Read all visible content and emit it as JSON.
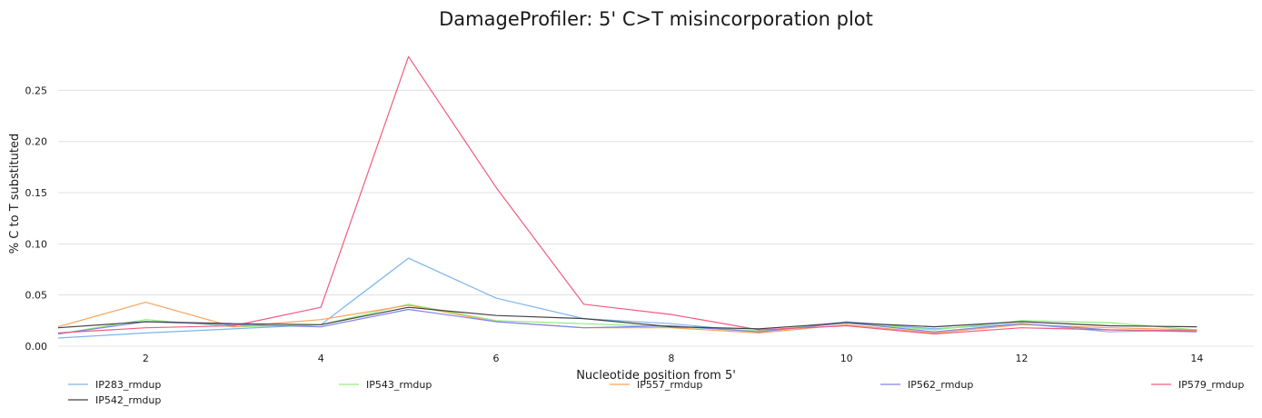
{
  "chart_data": {
    "type": "line",
    "title": "DamageProfiler: 5' C>T misincorporation plot",
    "xlabel": "Nucleotide position from 5'",
    "ylabel": "% C to T substituted",
    "x": [
      1,
      2,
      3,
      4,
      5,
      6,
      7,
      8,
      9,
      10,
      11,
      12,
      13,
      14
    ],
    "xlim": [
      1,
      14.65
    ],
    "ylim": [
      0,
      0.285
    ],
    "xticks": [
      2,
      4,
      6,
      8,
      10,
      12,
      14
    ],
    "xtick_labels": [
      "2",
      "4",
      "6",
      "8",
      "10",
      "12",
      "14"
    ],
    "yticks": [
      0,
      0.05,
      0.1,
      0.15,
      0.2,
      0.25
    ],
    "ytick_labels": [
      "0.00",
      "0.05",
      "0.10",
      "0.15",
      "0.20",
      "0.25"
    ],
    "grid": true,
    "legend_position": "bottom",
    "series": [
      {
        "name": "IP283_rmdup",
        "color": "#7cb5ec",
        "values": [
          0.008,
          0.013,
          0.017,
          0.021,
          0.086,
          0.047,
          0.027,
          0.022,
          0.014,
          0.024,
          0.017,
          0.022,
          0.014,
          0.016
        ]
      },
      {
        "name": "IP543_rmdup",
        "color": "#90ed7d",
        "values": [
          0.012,
          0.026,
          0.019,
          0.021,
          0.041,
          0.025,
          0.022,
          0.019,
          0.015,
          0.023,
          0.016,
          0.025,
          0.023,
          0.016
        ]
      },
      {
        "name": "IP557_rmdup",
        "color": "#f7a35c",
        "values": [
          0.019,
          0.043,
          0.019,
          0.026,
          0.04,
          0.024,
          0.018,
          0.018,
          0.013,
          0.021,
          0.013,
          0.021,
          0.018,
          0.016
        ]
      },
      {
        "name": "IP562_rmdup",
        "color": "#8085e9",
        "values": [
          0.012,
          0.024,
          0.021,
          0.019,
          0.036,
          0.024,
          0.018,
          0.02,
          0.014,
          0.023,
          0.014,
          0.022,
          0.016,
          0.014
        ]
      },
      {
        "name": "IP579_rmdup",
        "color": "#f15c80",
        "values": [
          0.013,
          0.018,
          0.02,
          0.038,
          0.283,
          0.155,
          0.041,
          0.031,
          0.016,
          0.02,
          0.012,
          0.018,
          0.016,
          0.015
        ]
      },
      {
        "name": "IP542_rmdup",
        "color": "#434348",
        "values": [
          0.018,
          0.024,
          0.022,
          0.021,
          0.038,
          0.03,
          0.027,
          0.019,
          0.017,
          0.023,
          0.019,
          0.024,
          0.02,
          0.019
        ]
      }
    ]
  }
}
